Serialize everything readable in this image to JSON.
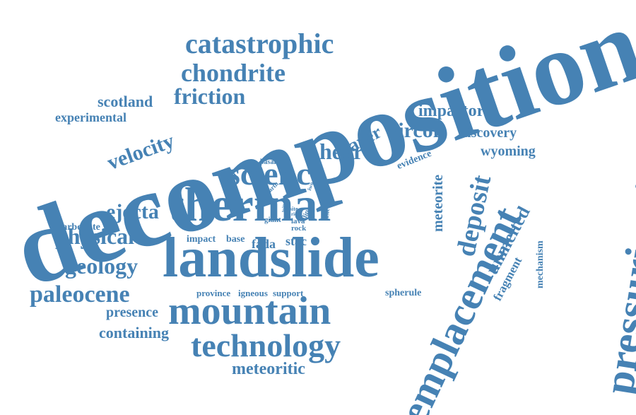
{
  "accent_color": "#4682b4",
  "words": [
    {
      "text": "decomposition"
    },
    {
      "text": "pressurization"
    },
    {
      "text": "emplacement"
    },
    {
      "text": "landslide"
    },
    {
      "text": "thermal"
    },
    {
      "text": "mountain"
    },
    {
      "text": "science"
    },
    {
      "text": "technology"
    },
    {
      "text": "catastrophic"
    },
    {
      "text": "chondrite"
    },
    {
      "text": "friction"
    },
    {
      "text": "scotland"
    },
    {
      "text": "experimental"
    },
    {
      "text": "velocity"
    },
    {
      "text": "heart"
    },
    {
      "text": "layer"
    },
    {
      "text": "zircon"
    },
    {
      "text": "impactor"
    },
    {
      "text": "discovery"
    },
    {
      "text": "wyoming"
    },
    {
      "text": "deposit"
    },
    {
      "text": "unmelted"
    },
    {
      "text": "meteorite"
    },
    {
      "text": "evidence"
    },
    {
      "text": "ejecta"
    },
    {
      "text": "physical"
    },
    {
      "text": "carbonate"
    },
    {
      "text": "geology"
    },
    {
      "text": "paleocene"
    },
    {
      "text": "presence"
    },
    {
      "text": "containing"
    },
    {
      "text": "meteoritic"
    },
    {
      "text": "impact"
    },
    {
      "text": "base"
    },
    {
      "text": "fada"
    },
    {
      "text": "stac"
    },
    {
      "text": "province"
    },
    {
      "text": "igneous"
    },
    {
      "text": "support"
    },
    {
      "text": "spherule"
    },
    {
      "text": "fragment"
    },
    {
      "text": "mechanism"
    },
    {
      "text": "giant"
    },
    {
      "text": "lava"
    },
    {
      "text": "rock"
    },
    {
      "text": "site"
    },
    {
      "text": "rich"
    },
    {
      "text": "slip"
    },
    {
      "text": "isle"
    },
    {
      "text": "iwo"
    },
    {
      "text": "earth"
    },
    {
      "text": "aided"
    },
    {
      "text": "basal"
    },
    {
      "text": "lpip"
    }
  ]
}
